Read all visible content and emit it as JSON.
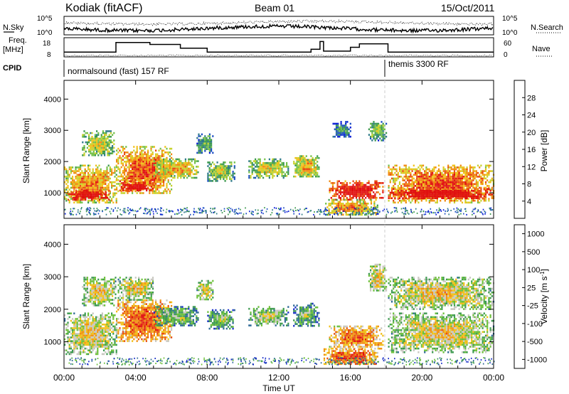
{
  "header": {
    "title": "Kodiak (fitACF)",
    "beam": "Beam 01",
    "date": "15/Oct/2011"
  },
  "strip_labels": {
    "nsky": "N.Sky",
    "nsearch": "N.Search",
    "freq_top": "Freq.",
    "freq_unit": "[MHz]",
    "nave": "Nave",
    "cpid": "CPID"
  },
  "strip_ticks": {
    "nsky_top": "10^5",
    "nsky_bottom": "10^0",
    "nsearch_top": "10^5",
    "nsearch_bottom": "10^0",
    "freq_top": "18",
    "freq_bottom": "8",
    "nave_top": "60",
    "nave_bottom": "0"
  },
  "cpid_segments": [
    {
      "label": "normalsound (fast) 157 RF",
      "start_hour": 0
    },
    {
      "label": "themis 3300 RF",
      "start_hour": 18.0
    }
  ],
  "chart_data": [
    {
      "type": "line",
      "name": "freq",
      "ylim": [
        8,
        18
      ],
      "x_hours": [
        0,
        2.9,
        2.9,
        4.8,
        4.8,
        6.5,
        6.5,
        8.0,
        8.0,
        13.8,
        13.8,
        14.3,
        14.3,
        14.5,
        14.5,
        16.0,
        16.0,
        16.5,
        16.5,
        18.1,
        18.1,
        24
      ],
      "values": [
        10.5,
        10.5,
        15.5,
        15.5,
        14.5,
        14.5,
        12.5,
        12.5,
        10.5,
        10.5,
        12,
        12,
        16,
        16,
        11,
        11,
        13,
        13,
        14.8,
        14.8,
        10.5,
        10.5
      ]
    },
    {
      "type": "heatmap",
      "name": "power",
      "xlabel": "",
      "ylabel": "Slant Range [km]",
      "xlim_hours": [
        0,
        24
      ],
      "ylim": [
        180,
        4600
      ],
      "yticks": [
        "1000",
        "2000",
        "3000",
        "4000"
      ],
      "colorbar": {
        "label": "Power [dB]",
        "ticks": [
          "4",
          "8",
          "12",
          "16",
          "20",
          "24",
          "28"
        ],
        "colors": [
          "#0a1fd6",
          "#1d4fc4",
          "#2f7a8a",
          "#3d9a50",
          "#74c04a",
          "#c8d22e",
          "#f0c018",
          "#f08a10",
          "#e84a10",
          "#e01010"
        ]
      },
      "echo_regions": [
        {
          "t0": 0.0,
          "t1": 2.9,
          "r0": 700,
          "r1": 1900,
          "level": 0.62
        },
        {
          "t0": 0.2,
          "t1": 2.5,
          "r0": 800,
          "r1": 1100,
          "level": 0.95
        },
        {
          "t0": 1.0,
          "t1": 2.8,
          "r0": 2200,
          "r1": 3000,
          "level": 0.45
        },
        {
          "t0": 2.9,
          "t1": 6.0,
          "r0": 1000,
          "r1": 2500,
          "level": 0.7
        },
        {
          "t0": 3.0,
          "t1": 5.0,
          "r0": 1050,
          "r1": 1400,
          "level": 0.92
        },
        {
          "t0": 5.0,
          "t1": 7.5,
          "r0": 1500,
          "r1": 2100,
          "level": 0.55
        },
        {
          "t0": 7.4,
          "t1": 8.3,
          "r0": 2300,
          "r1": 2900,
          "level": 0.3
        },
        {
          "t0": 8.0,
          "t1": 9.5,
          "r0": 1400,
          "r1": 2000,
          "level": 0.4
        },
        {
          "t0": 10.3,
          "t1": 12.5,
          "r0": 1500,
          "r1": 2100,
          "level": 0.45
        },
        {
          "t0": 12.8,
          "t1": 14.2,
          "r0": 1500,
          "r1": 2200,
          "level": 0.55
        },
        {
          "t0": 14.8,
          "t1": 17.8,
          "r0": 800,
          "r1": 1400,
          "level": 0.9
        },
        {
          "t0": 14.5,
          "t1": 17.5,
          "r0": 300,
          "r1": 800,
          "level": 0.6
        },
        {
          "t0": 17.0,
          "t1": 18.0,
          "r0": 2700,
          "r1": 3300,
          "level": 0.35
        },
        {
          "t0": 18.1,
          "t1": 24.0,
          "r0": 700,
          "r1": 1900,
          "level": 0.72
        },
        {
          "t0": 18.1,
          "t1": 24.0,
          "r0": 800,
          "r1": 1150,
          "level": 0.96
        },
        {
          "t0": 15.0,
          "t1": 16.0,
          "r0": 2800,
          "r1": 3300,
          "level": 0.2
        }
      ]
    },
    {
      "type": "heatmap",
      "name": "velocity",
      "xlabel": "Time UT",
      "ylabel": "Slant Range [km]",
      "xlim_hours": [
        0,
        24
      ],
      "ylim": [
        180,
        4600
      ],
      "xticks": [
        "00:00",
        "04:00",
        "08:00",
        "12:00",
        "16:00",
        "20:00",
        "00:00"
      ],
      "yticks": [
        "1000",
        "2000",
        "3000",
        "4000"
      ],
      "colorbar": {
        "label": "Velocity [m s",
        "label_sup": "-1",
        "label_end": "]",
        "ticks": [
          "1000",
          "500",
          "100",
          "25",
          "-25",
          "-100",
          "-500",
          "-1000"
        ],
        "colors": [
          "#1a30c8",
          "#2f6a98",
          "#3d9a50",
          "#6cc03a",
          "#c8c8c0",
          "#f0c018",
          "#f09010",
          "#e85010",
          "#e01010"
        ]
      },
      "echo_regions": [
        {
          "t0": 0.0,
          "t1": 2.9,
          "r0": 600,
          "r1": 1900,
          "level": 0.45
        },
        {
          "t0": 1.0,
          "t1": 2.9,
          "r0": 2100,
          "r1": 3000,
          "level": 0.45
        },
        {
          "t0": 2.9,
          "t1": 6.0,
          "r0": 1000,
          "r1": 2300,
          "level": 0.7
        },
        {
          "t0": 3.0,
          "t1": 5.0,
          "r0": 2300,
          "r1": 3000,
          "level": 0.45
        },
        {
          "t0": 5.0,
          "t1": 7.5,
          "r0": 1500,
          "r1": 2100,
          "level": 0.3
        },
        {
          "t0": 7.4,
          "t1": 8.3,
          "r0": 2300,
          "r1": 2900,
          "level": 0.45
        },
        {
          "t0": 8.0,
          "t1": 9.5,
          "r0": 1400,
          "r1": 2000,
          "level": 0.3
        },
        {
          "t0": 10.3,
          "t1": 12.5,
          "r0": 1500,
          "r1": 2100,
          "level": 0.35
        },
        {
          "t0": 12.8,
          "t1": 14.2,
          "r0": 1500,
          "r1": 2200,
          "level": 0.25
        },
        {
          "t0": 14.8,
          "t1": 17.8,
          "r0": 800,
          "r1": 1500,
          "level": 0.65
        },
        {
          "t0": 14.5,
          "t1": 17.5,
          "r0": 300,
          "r1": 800,
          "level": 0.72
        },
        {
          "t0": 17.0,
          "t1": 18.0,
          "r0": 2500,
          "r1": 3400,
          "level": 0.45
        },
        {
          "t0": 18.1,
          "t1": 24.0,
          "r0": 700,
          "r1": 1900,
          "level": 0.45
        },
        {
          "t0": 18.1,
          "t1": 24.0,
          "r0": 2000,
          "r1": 3000,
          "level": 0.45
        }
      ]
    }
  ]
}
